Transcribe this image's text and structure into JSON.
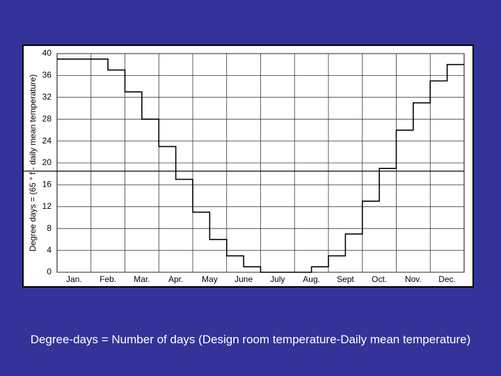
{
  "chart_data": {
    "type": "line",
    "step": true,
    "ylabel": "Degree days = (65 ° f - daily mean temperature)",
    "categories": [
      "Jan.",
      null,
      "Feb.",
      null,
      "Mar.",
      null,
      "Apr.",
      null,
      "May",
      null,
      "June",
      null,
      "July",
      null,
      "Aug.",
      null,
      "Sept",
      null,
      "Oct.",
      null,
      "Nov.",
      null,
      "Dec.",
      null
    ],
    "series": [
      {
        "color": "#000000",
        "values": [
          39,
          39,
          39,
          37,
          33,
          28,
          23,
          17,
          11,
          6,
          3,
          1,
          0,
          0,
          0,
          1,
          3,
          7,
          13,
          19,
          26,
          31,
          35,
          38
        ]
      }
    ],
    "reference_line": 18.5,
    "ylim": [
      0,
      40
    ],
    "yticks": [
      0,
      4,
      8,
      12,
      16,
      20,
      24,
      28,
      32,
      36,
      40
    ],
    "grid": true
  },
  "caption": "Degree-days = Number of days (Design room temperature-Daily mean temperature)"
}
